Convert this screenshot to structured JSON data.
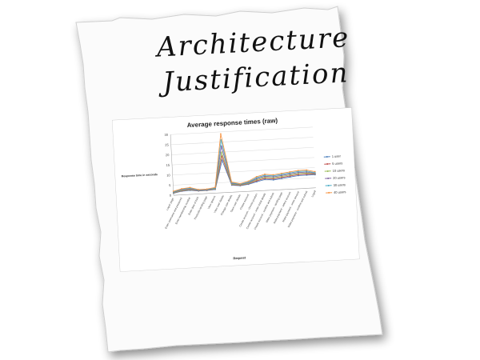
{
  "page": {
    "heading_lines": [
      "Architecture",
      "Justification"
    ]
  },
  "chart_data": {
    "type": "line",
    "title": "Average response times (raw)",
    "xlabel": "Request",
    "ylabel": "Response time in seconds",
    "ylim": [
      0,
      30
    ],
    "yticks": [
      0,
      5,
      10,
      15,
      20,
      25,
      30
    ],
    "grid": true,
    "legend_position": "right",
    "categories": [
      "Logon page",
      "Enter username and password",
      "Enter membership number",
      "Enter date of birth",
      "Postcode landing page",
      "View options",
      "View user details",
      "Change user details",
      "Save user details",
      "Create account",
      "Create account - choose product",
      "Create account - enter initial details",
      "Create account - confirm and submit",
      "Make payment - landing page",
      "Make payment - select account",
      "Make payment - enter amount",
      "Make payment - confirm and submit",
      "Logoff"
    ],
    "series": [
      {
        "name": "1 user",
        "color": "#4f81bd",
        "values": [
          1.0,
          1.8,
          2.0,
          1.5,
          1.5,
          1.8,
          16.0,
          3.5,
          3.0,
          3.5,
          4.5,
          5.5,
          5.0,
          5.5,
          6.0,
          6.5,
          6.5,
          6.5
        ]
      },
      {
        "name": "5 users",
        "color": "#c0504d",
        "values": [
          1.2,
          2.0,
          2.3,
          1.6,
          1.6,
          2.0,
          18.0,
          3.8,
          3.2,
          3.8,
          5.0,
          6.0,
          5.5,
          6.0,
          6.5,
          7.0,
          7.0,
          6.8
        ]
      },
      {
        "name": "10 users",
        "color": "#9bbb59",
        "values": [
          1.3,
          2.2,
          2.5,
          1.7,
          1.7,
          2.1,
          20.0,
          4.0,
          3.4,
          4.0,
          5.5,
          6.5,
          6.0,
          6.5,
          7.0,
          7.5,
          7.5,
          7.0
        ]
      },
      {
        "name": "20 users",
        "color": "#8064a2",
        "values": [
          1.5,
          2.5,
          2.8,
          1.8,
          1.8,
          2.3,
          23.0,
          4.3,
          3.6,
          4.3,
          6.0,
          7.0,
          6.5,
          7.0,
          7.5,
          8.0,
          8.0,
          7.2
        ]
      },
      {
        "name": "30 users",
        "color": "#4bacc6",
        "values": [
          1.7,
          2.8,
          3.1,
          2.0,
          2.0,
          2.5,
          26.0,
          4.6,
          3.8,
          4.6,
          6.5,
          7.5,
          7.0,
          7.5,
          8.0,
          8.5,
          8.5,
          7.5
        ]
      },
      {
        "name": "40 users",
        "color": "#f79646",
        "values": [
          2.0,
          3.0,
          3.4,
          2.2,
          2.2,
          2.8,
          29.0,
          5.0,
          4.0,
          5.0,
          7.0,
          8.0,
          7.5,
          8.0,
          8.5,
          9.0,
          9.0,
          8.0
        ]
      }
    ]
  }
}
